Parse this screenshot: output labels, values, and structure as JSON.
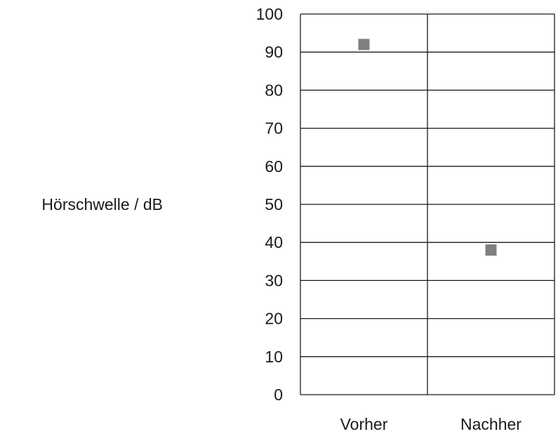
{
  "chart_data": {
    "type": "scatter",
    "title": "",
    "xlabel": "",
    "ylabel": "Hörschwelle / dB",
    "categories": [
      "Vorher",
      "Nachher"
    ],
    "values": [
      92,
      38
    ],
    "ylim": [
      0,
      100
    ],
    "yticks": [
      0,
      10,
      20,
      30,
      40,
      50,
      60,
      70,
      80,
      90,
      100
    ],
    "grid": true,
    "marker": "square",
    "marker_color": "#808080",
    "line_color": "#1a1a1a"
  }
}
